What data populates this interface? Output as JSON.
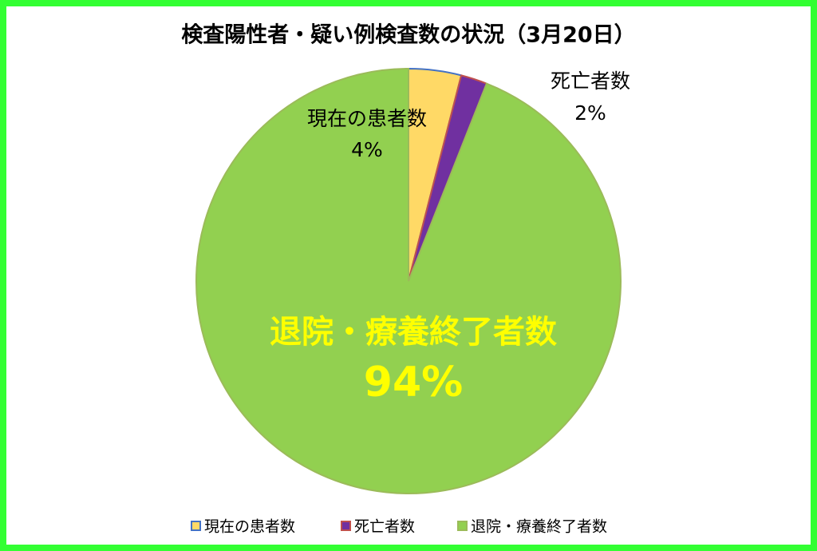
{
  "chart_data": {
    "type": "pie",
    "title": "検査陽性者・疑い例検査数の状況（3月20日）",
    "categories": [
      "現在の患者数",
      "死亡者数",
      "退院・療養終了者数"
    ],
    "values": [
      4,
      2,
      94
    ],
    "value_labels": [
      "4%",
      "2%",
      "94%"
    ],
    "colors": [
      "#ffd966",
      "#7030a0",
      "#92d050"
    ],
    "edge_colors": [
      "#4472c4",
      "#c0504d",
      "#9bbb59"
    ],
    "legend": "bottom"
  }
}
